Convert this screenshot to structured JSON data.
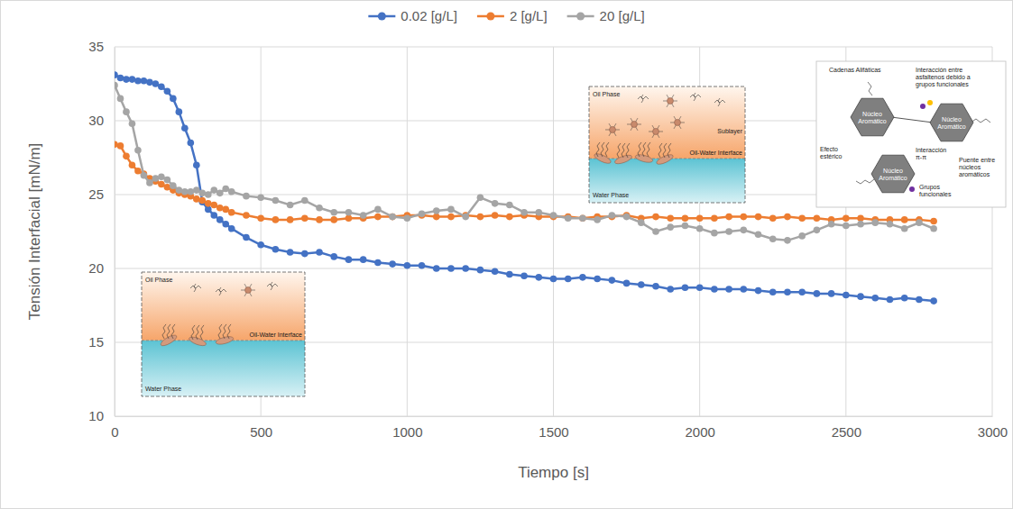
{
  "chart_data": {
    "type": "line",
    "x_label": "Tiempo [s]",
    "y_label": "Tensión Interfacial [mN/m]",
    "x": [
      0,
      20,
      40,
      60,
      80,
      100,
      120,
      140,
      160,
      180,
      200,
      220,
      240,
      260,
      280,
      300,
      320,
      340,
      360,
      380,
      400,
      450,
      500,
      550,
      600,
      650,
      700,
      750,
      800,
      850,
      900,
      950,
      1000,
      1050,
      1100,
      1150,
      1200,
      1250,
      1300,
      1350,
      1400,
      1450,
      1500,
      1550,
      1600,
      1650,
      1700,
      1750,
      1800,
      1850,
      1900,
      1950,
      2000,
      2050,
      2100,
      2150,
      2200,
      2250,
      2300,
      2350,
      2400,
      2450,
      2500,
      2550,
      2600,
      2650,
      2700,
      2750,
      2800
    ],
    "series": [
      {
        "name": "0.02 [g/L]",
        "color": "#4472c4",
        "marker": "circle",
        "line_style": "solid",
        "values": [
          33.1,
          32.9,
          32.8,
          32.8,
          32.7,
          32.7,
          32.6,
          32.5,
          32.3,
          32.0,
          31.5,
          30.6,
          29.5,
          28.5,
          27.0,
          24.5,
          24.0,
          23.6,
          23.3,
          23.0,
          22.7,
          22.1,
          21.6,
          21.3,
          21.1,
          21.0,
          21.1,
          20.8,
          20.6,
          20.6,
          20.4,
          20.3,
          20.2,
          20.2,
          20.0,
          20.0,
          20.0,
          19.9,
          19.8,
          19.6,
          19.5,
          19.4,
          19.3,
          19.3,
          19.4,
          19.3,
          19.2,
          19.0,
          18.9,
          18.8,
          18.6,
          18.7,
          18.7,
          18.6,
          18.6,
          18.6,
          18.5,
          18.4,
          18.4,
          18.4,
          18.3,
          18.3,
          18.2,
          18.1,
          18.0,
          17.9,
          18.0,
          17.9,
          17.8
        ]
      },
      {
        "name": "2 [g/L]",
        "color": "#ed7d31",
        "marker": "circle",
        "line_style": "solid",
        "values": [
          28.4,
          28.3,
          27.6,
          27.0,
          26.6,
          26.4,
          26.1,
          25.9,
          25.7,
          25.5,
          25.3,
          25.1,
          25.0,
          24.9,
          24.7,
          24.6,
          24.4,
          24.3,
          24.1,
          24.0,
          23.8,
          23.6,
          23.4,
          23.3,
          23.3,
          23.4,
          23.3,
          23.3,
          23.4,
          23.4,
          23.5,
          23.5,
          23.6,
          23.6,
          23.5,
          23.5,
          23.6,
          23.5,
          23.6,
          23.5,
          23.6,
          23.5,
          23.5,
          23.5,
          23.4,
          23.5,
          23.5,
          23.6,
          23.4,
          23.5,
          23.4,
          23.4,
          23.4,
          23.4,
          23.5,
          23.5,
          23.5,
          23.4,
          23.5,
          23.4,
          23.4,
          23.3,
          23.4,
          23.4,
          23.3,
          23.3,
          23.3,
          23.3,
          23.2
        ]
      },
      {
        "name": "20 [g/L]",
        "color": "#a5a5a5",
        "marker": "circle",
        "line_style": "solid",
        "values": [
          32.4,
          31.5,
          30.6,
          29.8,
          28.0,
          26.3,
          25.8,
          26.1,
          26.2,
          26.0,
          25.6,
          25.3,
          25.2,
          25.2,
          25.3,
          25.1,
          25.0,
          25.3,
          25.1,
          25.4,
          25.2,
          24.9,
          24.8,
          24.6,
          24.3,
          24.6,
          24.1,
          23.8,
          23.8,
          23.6,
          24.0,
          23.5,
          23.4,
          23.7,
          23.9,
          24.0,
          23.5,
          24.8,
          24.4,
          24.3,
          23.8,
          23.8,
          23.6,
          23.4,
          23.4,
          23.3,
          23.6,
          23.5,
          23.1,
          22.5,
          22.8,
          22.9,
          22.7,
          22.4,
          22.5,
          22.6,
          22.3,
          22.0,
          21.9,
          22.2,
          22.6,
          23.0,
          22.9,
          23.0,
          23.1,
          23.0,
          22.7,
          23.1,
          22.7
        ]
      }
    ],
    "xlim": [
      0,
      3000
    ],
    "xticks": [
      0,
      500,
      1000,
      1500,
      2000,
      2500,
      3000
    ],
    "ylim": [
      10,
      35
    ],
    "yticks": [
      10,
      15,
      20,
      25,
      30,
      35
    ],
    "grid": true,
    "legend": "top",
    "annotations": [
      [
        "Oil Phase",
        "Oil-Water Interface",
        "Water Phase"
      ],
      [
        "Oil Phase",
        "Sublayer",
        "Oil-Water Interface",
        "Water Phase"
      ],
      [
        "Cadenas Alifáticas",
        "Interacción entre asfaltenos debido a grupos funcionales",
        "Efecto estérico",
        "Núcleo Aromático",
        "Núcleo Aromático",
        "Núcleo Aromático",
        "Interacción π-π",
        "Grupos funcionales",
        "Puente entre núcleos aromáticos"
      ]
    ]
  }
}
